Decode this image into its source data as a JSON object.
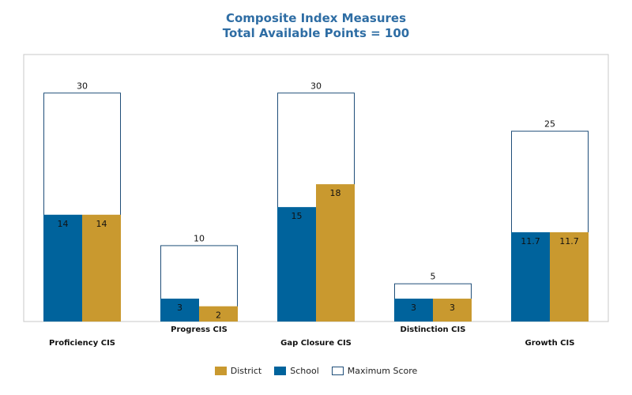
{
  "chart_data": {
    "type": "bar",
    "title": "Composite Index Measures",
    "subtitle": "Total Available Points = 100",
    "categories": [
      "Proficiency CIS",
      "Progress CIS",
      "Gap Closure CIS",
      "Distinction CIS",
      "Growth CIS"
    ],
    "series": [
      {
        "name": "School",
        "values": [
          14,
          3,
          15,
          3,
          11.7
        ],
        "labels": [
          "14",
          "3",
          "15",
          "3",
          "11.7"
        ]
      },
      {
        "name": "District",
        "values": [
          14,
          2,
          18,
          3,
          11.7
        ],
        "labels": [
          "14",
          "2",
          "18",
          "3",
          "11.7"
        ]
      },
      {
        "name": "Maximum Score",
        "values": [
          30,
          10,
          30,
          5,
          25
        ],
        "labels": [
          "30",
          "10",
          "30",
          "5",
          "25"
        ]
      }
    ],
    "ylim": [
      0,
      35
    ],
    "grid": false,
    "legend_position": "bottom-center",
    "colors": {
      "School": "#00639c",
      "District": "#c9992f",
      "Maximum Score": "#ffffff",
      "outline": "#1f4e79"
    }
  },
  "legend": [
    {
      "key": "District",
      "label": "District"
    },
    {
      "key": "School",
      "label": "School"
    },
    {
      "key": "Maximum Score",
      "label": "Maximum Score"
    }
  ]
}
